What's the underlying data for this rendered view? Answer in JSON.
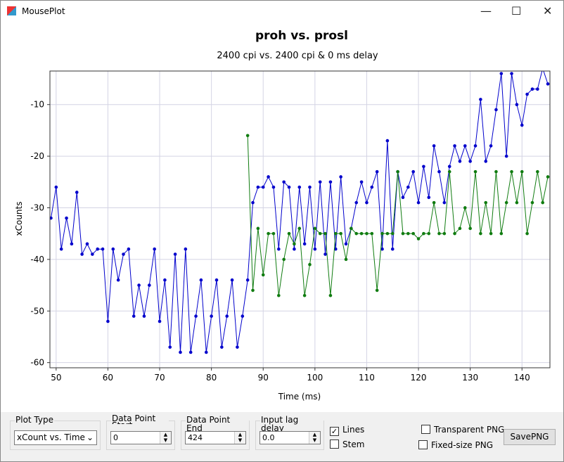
{
  "window": {
    "title": "MousePlot"
  },
  "chart_data": {
    "type": "line",
    "title": "proh vs. prosl",
    "subtitle": "2400 cpi vs. 2400 cpi & 0 ms delay",
    "x_label": "Time (ms)",
    "y_label": "xCounts",
    "grid": true,
    "xlim": [
      48.8,
      145.4
    ],
    "ylim": [
      -61,
      -3.5
    ],
    "xticks": [
      50,
      60,
      70,
      80,
      90,
      100,
      110,
      120,
      130,
      140
    ],
    "yticks": [
      -60,
      -50,
      -40,
      -30,
      -20,
      -10
    ],
    "x": [
      49,
      50,
      51,
      52,
      53,
      54,
      55,
      56,
      57,
      58,
      59,
      60,
      61,
      62,
      63,
      64,
      65,
      66,
      67,
      68,
      69,
      70,
      71,
      72,
      73,
      74,
      75,
      76,
      77,
      78,
      79,
      80,
      81,
      82,
      83,
      84,
      85,
      86,
      87,
      88,
      89,
      90,
      91,
      92,
      93,
      94,
      95,
      96,
      97,
      98,
      99,
      100,
      101,
      102,
      103,
      104,
      105,
      106,
      107,
      108,
      109,
      110,
      111,
      112,
      113,
      114,
      115,
      116,
      117,
      118,
      119,
      120,
      121,
      122,
      123,
      124,
      125,
      126,
      127,
      128,
      129,
      130,
      131,
      132,
      133,
      134,
      135,
      136,
      137,
      138,
      139,
      140,
      141,
      142,
      143,
      144,
      145
    ],
    "series": [
      {
        "color": "#0000cc",
        "values": [
          -32,
          -26,
          -38,
          -32,
          -37,
          -27,
          -39,
          -37,
          -39,
          -38,
          -38,
          -52,
          -38,
          -44,
          -39,
          -38,
          -51,
          -45,
          -51,
          -45,
          -38,
          -52,
          -44,
          -57,
          -39,
          -58,
          -38,
          -58,
          -51,
          -44,
          -58,
          -51,
          -44,
          -57,
          -51,
          -44,
          -57,
          -51,
          -44,
          -29,
          -26,
          -26,
          -24,
          -26,
          -38,
          -25,
          -26,
          -38,
          -26,
          -37,
          -26,
          -38,
          -25,
          -39,
          -25,
          -38,
          -24,
          -37,
          -34,
          -29,
          -25,
          -29,
          -26,
          -23,
          -38,
          -17,
          -38,
          -23,
          -28,
          -26,
          -23,
          -29,
          -22,
          -28,
          -18,
          -23,
          -29,
          -22,
          -18,
          -21,
          -18,
          -21,
          -18,
          -9,
          -21,
          -18,
          -11,
          -4,
          -20,
          -4,
          -10,
          -14,
          -8,
          -7,
          -7,
          -3,
          -6
        ]
      },
      {
        "color": "#107c10",
        "values": [
          null,
          null,
          null,
          null,
          null,
          null,
          null,
          null,
          null,
          null,
          null,
          null,
          null,
          null,
          null,
          null,
          null,
          null,
          null,
          null,
          null,
          null,
          null,
          null,
          null,
          null,
          null,
          null,
          null,
          null,
          null,
          null,
          null,
          null,
          null,
          null,
          null,
          null,
          -16,
          -46,
          -34,
          -43,
          -35,
          -35,
          -47,
          -40,
          -35,
          -37,
          -34,
          -47,
          -41,
          -34,
          -35,
          -35,
          -47,
          -35,
          -35,
          -40,
          -34,
          -35,
          -35,
          -35,
          -35,
          -46,
          -35,
          -35,
          -35,
          -23,
          -35,
          -35,
          -35,
          -36,
          -35,
          -35,
          -29,
          -35,
          -35,
          -23,
          -35,
          -34,
          -30,
          -34,
          -23,
          -35,
          -29,
          -35,
          -23,
          -35,
          -29,
          -23,
          -29,
          -23,
          -35,
          -29,
          -23,
          -29,
          -24
        ]
      }
    ]
  },
  "controls": {
    "plot_type": {
      "label": "Plot Type",
      "value": "xCount vs. Time"
    },
    "start": {
      "label": "Data Point Start",
      "value": "0"
    },
    "end": {
      "label": "Data Point End",
      "value": "424"
    },
    "delay": {
      "label": "Input lag delay",
      "value": "0.0"
    },
    "lines": {
      "label": "Lines",
      "checked": true
    },
    "stem": {
      "label": "Stem",
      "checked": false
    },
    "transparent": {
      "label": "Transparent PNG",
      "checked": false
    },
    "fixed": {
      "label": "Fixed-size PNG",
      "checked": false
    },
    "save": {
      "label": "SavePNG"
    }
  }
}
